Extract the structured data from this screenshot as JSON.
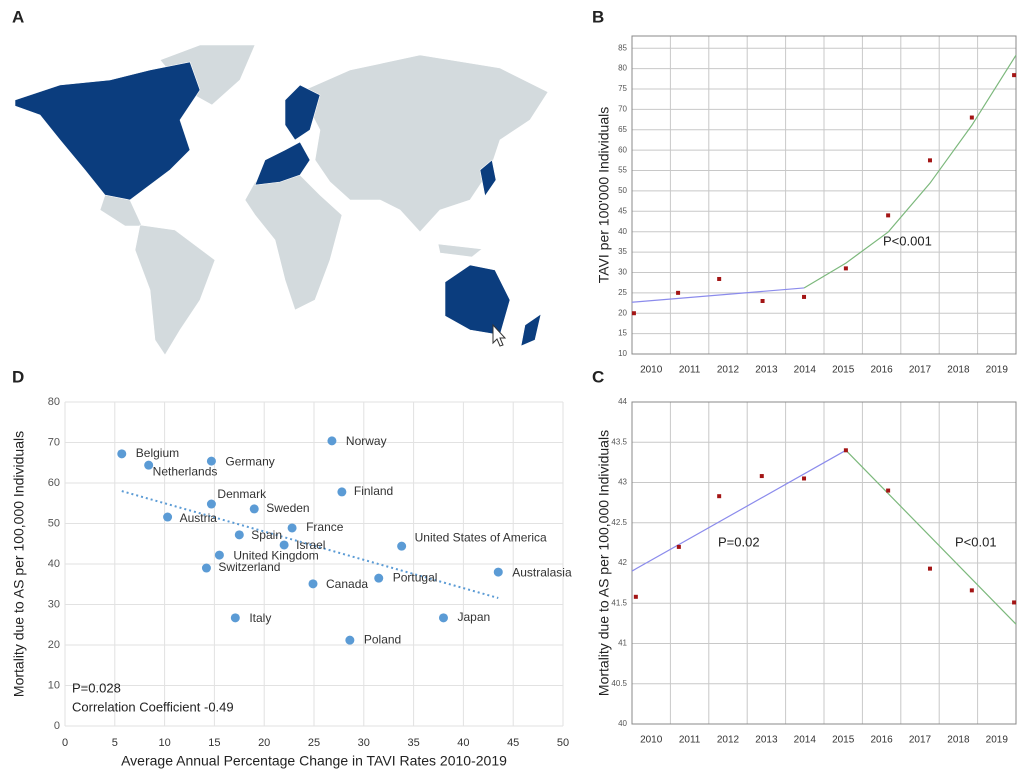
{
  "chart_data": [
    {
      "type": "map",
      "panel": "A"
    },
    {
      "type": "scatter",
      "panel": "B",
      "ylabel": "TAVI per 100'000 Individuals",
      "xlim": [
        2009.5,
        2019.5
      ],
      "xticks": [
        2010,
        2011,
        2012,
        2013,
        2014,
        2015,
        2016,
        2017,
        2018,
        2019
      ],
      "ylim": [
        10,
        88
      ],
      "yticks": [
        10,
        15,
        20,
        25,
        30,
        35,
        40,
        45,
        50,
        55,
        60,
        65,
        70,
        75,
        80,
        85
      ],
      "grid": true,
      "series": [
        {
          "color": "#a31515",
          "marker": "square",
          "x": [
            2009.55,
            2010.7,
            2011.77,
            2012.9,
            2013.98,
            2015.07,
            2016.17,
            2017.26,
            2018.35,
            2019.45
          ],
          "values": [
            20,
            25,
            28.4,
            23,
            24,
            31,
            44,
            57.5,
            68,
            78.4
          ]
        }
      ],
      "trend_lines": [
        {
          "color": "#8b8bec",
          "style": "solid",
          "x": [
            2009.5,
            2013.98
          ],
          "values": [
            22.7,
            26.2
          ]
        },
        {
          "color": "#7cb87c",
          "style": "solid",
          "x": [
            2013.98,
            2015.07,
            2016.17,
            2017.26,
            2018.35,
            2019.5
          ],
          "values": [
            26.2,
            32.3,
            39.9,
            51.9,
            66.1,
            83.3
          ]
        }
      ],
      "annotations": [
        "P<0.001"
      ]
    },
    {
      "type": "scatter",
      "panel": "C",
      "ylabel": "Mortality due to AS  per 100,000 Individuals",
      "xlim": [
        2009.5,
        2019.5
      ],
      "xticks": [
        2010,
        2011,
        2012,
        2013,
        2014,
        2015,
        2016,
        2017,
        2018,
        2019
      ],
      "ylim": [
        40,
        44
      ],
      "yticks": [
        40,
        40.5,
        41,
        41.5,
        42,
        42.5,
        43,
        43.5,
        44
      ],
      "grid": true,
      "series": [
        {
          "color": "#a31515",
          "marker": "square",
          "x": [
            2009.6,
            2010.72,
            2011.77,
            2012.88,
            2013.98,
            2015.07,
            2016.17,
            2017.26,
            2018.35,
            2019.45
          ],
          "values": [
            41.58,
            42.2,
            42.83,
            43.08,
            43.05,
            43.4,
            42.9,
            41.93,
            41.66,
            41.51
          ]
        }
      ],
      "trend_lines": [
        {
          "color": "#8b8bec",
          "style": "solid",
          "x": [
            2009.5,
            2015.07
          ],
          "values": [
            41.9,
            43.4
          ]
        },
        {
          "color": "#7cb87c",
          "style": "solid",
          "x": [
            2015.07,
            2019.5
          ],
          "values": [
            43.4,
            41.24
          ]
        }
      ],
      "annotations": [
        "P=0.02",
        "P<0.01"
      ]
    },
    {
      "type": "scatter",
      "panel": "D",
      "ylabel": "Mortality due to AS  per 100,000 Individuals",
      "xlabel": "Average Annual Percentage Change in TAVI Rates 2010-2019",
      "xlim": [
        0,
        50
      ],
      "xticks": [
        0,
        5,
        10,
        15,
        20,
        25,
        30,
        35,
        40,
        45,
        50
      ],
      "ylim": [
        0,
        80
      ],
      "yticks": [
        0,
        10,
        20,
        30,
        40,
        50,
        60,
        70,
        80
      ],
      "grid": true,
      "series": [
        {
          "color": "#5b9bd5",
          "marker": "circle",
          "labels": [
            "Belgium",
            "Netherlands",
            "Germany",
            "Norway",
            "Denmark",
            "Finland",
            "Austria",
            "Sweden",
            "France",
            "Spain",
            "Israel",
            "United States of America",
            "United Kingdom",
            "Switzerland",
            "Australasia",
            "Portugal",
            "Canada",
            "Italy",
            "Japan",
            "Poland"
          ],
          "x": [
            5.7,
            8.4,
            14.7,
            26.8,
            14.7,
            27.8,
            10.3,
            19.0,
            22.8,
            17.5,
            22.0,
            33.8,
            15.5,
            14.2,
            43.5,
            31.5,
            24.9,
            17.1,
            38.0,
            28.6
          ],
          "values": [
            67.2,
            64.4,
            65.4,
            70.4,
            54.8,
            57.8,
            51.6,
            53.6,
            48.9,
            47.2,
            44.7,
            44.4,
            42.2,
            39.0,
            38.0,
            36.5,
            35.1,
            26.7,
            26.7,
            21.2
          ]
        }
      ],
      "trend_lines": [
        {
          "color": "#5b9bd5",
          "style": "dotted",
          "x": [
            5.7,
            43.5
          ],
          "values": [
            58.0,
            31.6
          ]
        }
      ],
      "annotations": [
        "P=0.028",
        "Correlation Coefficient -0.49"
      ]
    }
  ]
}
